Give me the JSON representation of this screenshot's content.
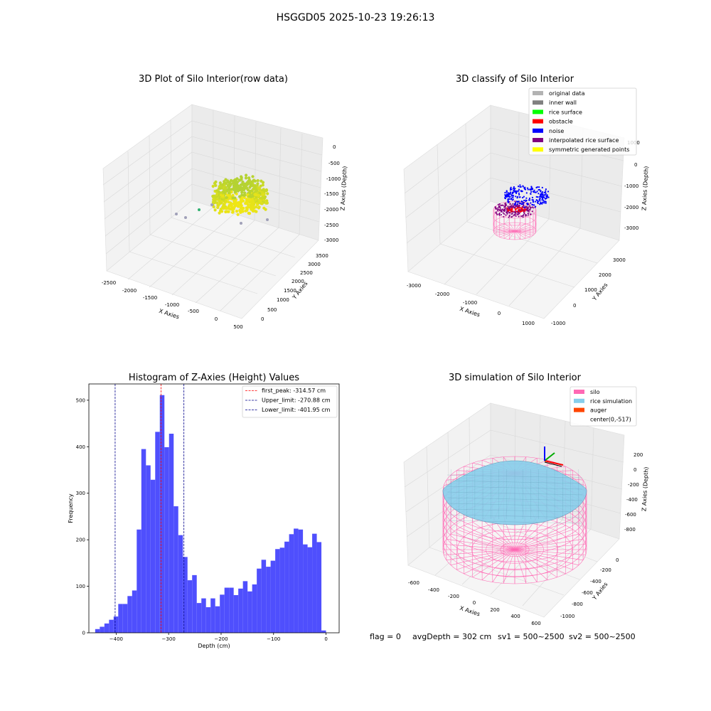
{
  "suptitle": "HSGGD05 2025-10-23 19:26:13",
  "footer": {
    "flag": "flag = 0",
    "avg": "avgDepth = 302 cm",
    "sv1": "sv1 = 500~2500",
    "sv2": "sv2 = 500~2500"
  },
  "colors": {
    "histogram_bar": "#4f4ffd",
    "first_peak": "#ff0000",
    "limit_lines": "#00008b",
    "silo": "#ff69b4",
    "rice_simulation": "#87ceeb",
    "auger": "#ff4500",
    "rice_surface_points": "#d7e21a"
  },
  "chart_data": [
    {
      "type": "scatter",
      "title": "3D Plot of Silo Interior(row data)",
      "xlabel": "X Axies",
      "ylabel": "Y Axies",
      "zlabel": "Z Axies (Depth)",
      "x_ticks": [
        "-2500",
        "-2000",
        "-1500",
        "-1000",
        "-500",
        "0",
        "500"
      ],
      "y_ticks": [
        "0",
        "500",
        "1000",
        "1500",
        "2000",
        "2500",
        "3000",
        "3500"
      ],
      "z_ticks": [
        "0",
        "-500",
        "-1000",
        "-1500",
        "-2000",
        "-2500",
        "-3000"
      ]
    },
    {
      "type": "scatter",
      "title": "3D classify of Silo Interior",
      "xlabel": "X Axies",
      "ylabel": "Y Axies",
      "zlabel": "Z Axies (Depth)",
      "x_ticks": [
        "-3000",
        "-2000",
        "-1000",
        "0",
        "1000"
      ],
      "y_ticks": [
        "-1000",
        "0",
        "1000",
        "2000",
        "3000"
      ],
      "z_ticks": [
        "1000",
        "0",
        "-1000",
        "-2000",
        "-3000"
      ],
      "legend_position": "top-right",
      "legend": [
        {
          "label": "original data",
          "color": "#b3b3b3"
        },
        {
          "label": "inner wall",
          "color": "#808080"
        },
        {
          "label": "rice surface",
          "color": "#00ff00"
        },
        {
          "label": "obstacle",
          "color": "#ff0000"
        },
        {
          "label": "noise",
          "color": "#0000ff"
        },
        {
          "label": "interpolated rice surface",
          "color": "#800080"
        },
        {
          "label": "symmetric generated points",
          "color": "#ffff00"
        }
      ]
    },
    {
      "type": "bar",
      "title": "Histogram of Z-Axies (Height) Values",
      "xlabel": "Depth (cm)",
      "ylabel": "Frequency",
      "xlim": [
        -452,
        25
      ],
      "ylim": [
        0,
        535
      ],
      "x_ticks": [
        {
          "v": -400,
          "label": "−400"
        },
        {
          "v": -300,
          "label": "−300"
        },
        {
          "v": -200,
          "label": "−200"
        },
        {
          "v": -100,
          "label": "−100"
        },
        {
          "v": 0,
          "label": "0"
        }
      ],
      "y_ticks": [
        {
          "v": 0,
          "label": "0"
        },
        {
          "v": 100,
          "label": "100"
        },
        {
          "v": 200,
          "label": "200"
        },
        {
          "v": 300,
          "label": "300"
        },
        {
          "v": 400,
          "label": "400"
        },
        {
          "v": 500,
          "label": "500"
        }
      ],
      "bin_start": -440,
      "bin_width": 8.8,
      "values": [
        8,
        13,
        20,
        28,
        35,
        62,
        62,
        79,
        91,
        222,
        395,
        360,
        329,
        432,
        511,
        399,
        428,
        272,
        210,
        163,
        113,
        124,
        64,
        74,
        55,
        74,
        57,
        82,
        97,
        97,
        81,
        95,
        111,
        89,
        104,
        138,
        157,
        142,
        155,
        180,
        183,
        196,
        212,
        224,
        222,
        190,
        184,
        213,
        195,
        5
      ],
      "vlines": [
        {
          "x": -314.57,
          "label": "first_peak: -314.57 cm",
          "color": "#ff0000"
        },
        {
          "x": -270.88,
          "label": "Upper_limit: -270.88 cm",
          "color": "#00008b"
        },
        {
          "x": -401.95,
          "label": "Lower_limit: -401.95 cm",
          "color": "#00008b"
        }
      ],
      "legend_position": "top-right"
    },
    {
      "type": "surface",
      "title": "3D simulation of Silo Interior",
      "xlabel": "X Axies",
      "ylabel": "Y Axies",
      "zlabel": "Z Axies (Depth)",
      "x_ticks": [
        "-600",
        "-400",
        "-200",
        "0",
        "200",
        "400",
        "600"
      ],
      "y_ticks": [
        "0",
        "-200",
        "-400",
        "-600",
        "-800",
        "-1000"
      ],
      "z_ticks": [
        "200",
        "0",
        "-200",
        "-400",
        "-600",
        "-800"
      ],
      "legend_position": "top-right",
      "legend": [
        {
          "label": "silo",
          "color": "#ff69b4"
        },
        {
          "label": "rice simulation",
          "color": "#87ceeb"
        },
        {
          "label": "auger",
          "color": "#ff4500"
        },
        {
          "label": "center(0,-517)",
          "color": ""
        }
      ]
    }
  ]
}
